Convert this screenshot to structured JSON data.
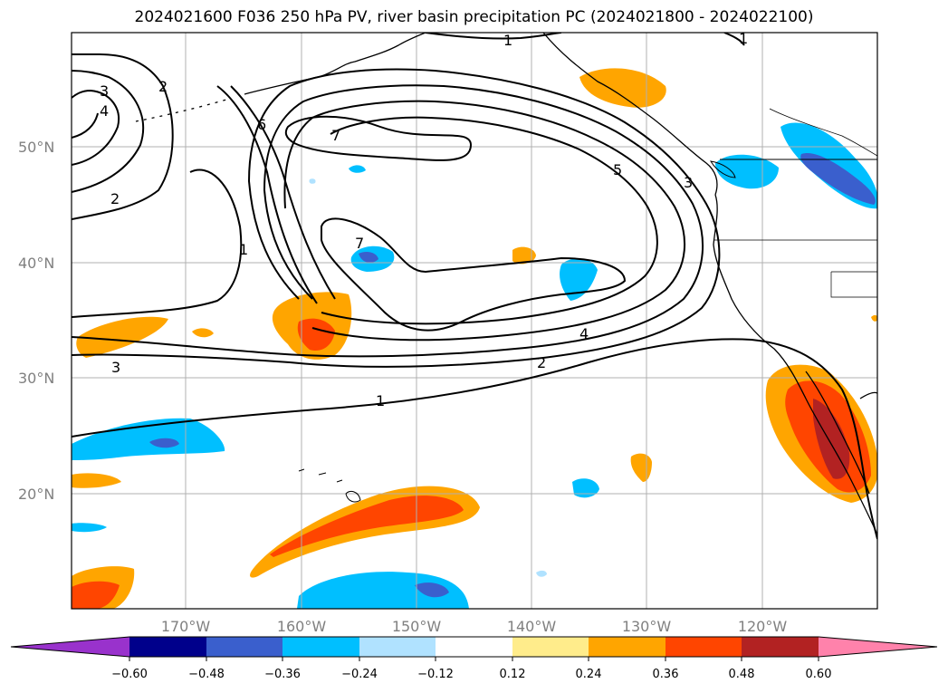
{
  "title": "2024021600 F036 250 hPa PV, river basin precipitation PC (2024021800 - 2024022100)",
  "map": {
    "lat_labels": [
      "50°N",
      "40°N",
      "30°N",
      "20°N"
    ],
    "lon_labels": [
      "170°W",
      "160°W",
      "150°W",
      "140°W",
      "130°W",
      "120°W"
    ],
    "contour_labels": [
      "1",
      "1",
      "1",
      "1",
      "2",
      "2",
      "2",
      "3",
      "3",
      "3",
      "4",
      "4",
      "5",
      "6",
      "7",
      "7"
    ]
  },
  "colorbar": {
    "tick_labels": [
      "−0.60",
      "−0.48",
      "−0.36",
      "−0.24",
      "−0.12",
      "0.12",
      "0.24",
      "0.36",
      "0.48",
      "0.60"
    ],
    "colors": [
      "#9932cc",
      "#00008b",
      "#3a5fcd",
      "#00bfff",
      "#b0e2ff",
      "#ffffff",
      "#ffec8b",
      "#ffa500",
      "#ff4500",
      "#b22222",
      "#ff82ab"
    ]
  }
}
